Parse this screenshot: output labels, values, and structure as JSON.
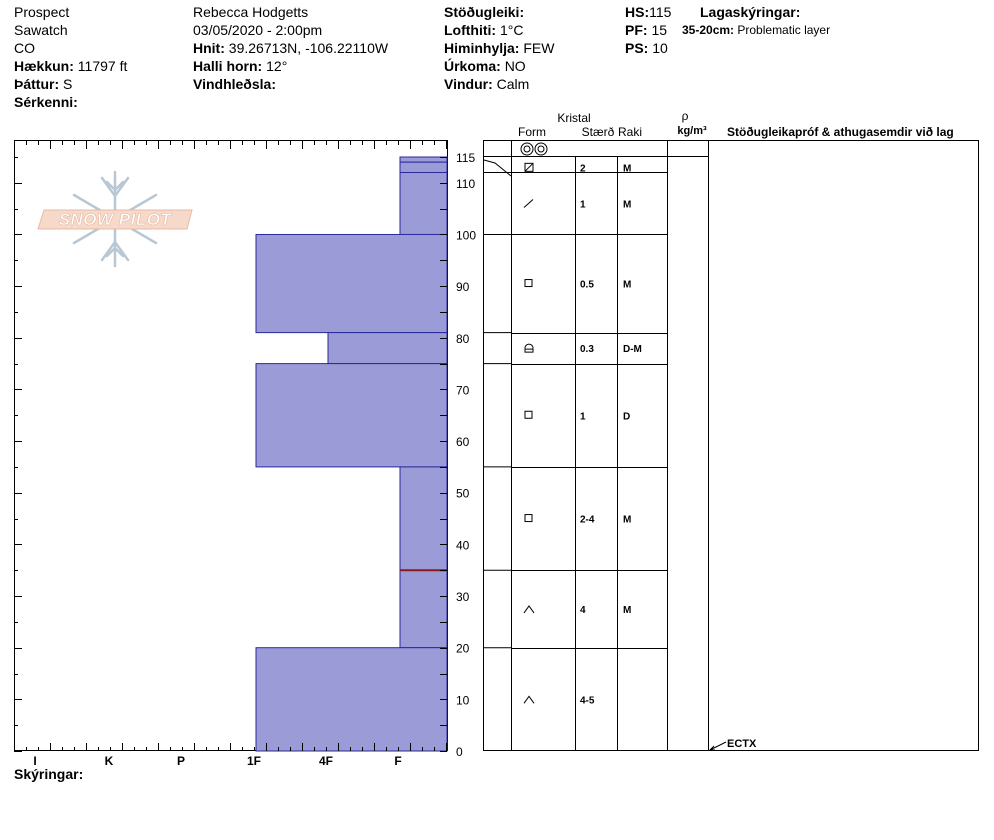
{
  "header": {
    "col1": {
      "location": "Prospect",
      "range": "Sawatch",
      "state": "CO",
      "elevation_label": "Hækkun:",
      "elevation_value": "11797 ft",
      "aspect_label": "Þáttur:",
      "aspect_value": "S",
      "features_label": "Sérkenni:"
    },
    "col2": {
      "observer": "Rebecca Hodgetts",
      "datetime": "03/05/2020 - 2:00pm",
      "coords_label": "Hnit:",
      "coords_value": "39.26713N, -106.22110W",
      "slope_label": "Halli horn:",
      "slope_value": "12°",
      "wind_loading_label": "Vindhleðsla:"
    },
    "col3": {
      "stability_label": "Stöðugleiki:",
      "air_temp_label": "Lofthiti:",
      "air_temp_value": "1°C",
      "sky_label": "Himinhylja:",
      "sky_value": "FEW",
      "precip_label": "Úrkoma:",
      "precip_value": "NO",
      "wind_label": "Vindur:",
      "wind_value": "Calm"
    },
    "col4": {
      "hs_label": "HS:",
      "hs_value": "115",
      "pf_label": "PF:",
      "pf_value": "15",
      "ps_label": "PS:",
      "ps_value": "10"
    },
    "col5": {
      "layer_notes_label": "Lagaskýringar:",
      "layer_note_range": "35-20cm:",
      "layer_note_text": "Problematic layer"
    }
  },
  "logo_text": "SNOW PILOT",
  "table_headers": {
    "crystal": "Kristal",
    "form": "Form",
    "size": "Stærð",
    "moisture": "Raki",
    "rho": "ρ",
    "density_unit": "kg/m³",
    "tests": "Stöðugleikapróf & athugasemdir við lag"
  },
  "footer": {
    "legend_label": "Skýringar:"
  },
  "test_result": "ECTX",
  "colors": {
    "layer_fill": "#9b9bd8",
    "layer_stroke": "#2a2a9a",
    "problem_line": "#8b1a1a",
    "logo_text": "#f0c8b4",
    "logo_flake": "#b9c7d3"
  },
  "chart_data": {
    "type": "bar",
    "orientation": "horizontal",
    "y_axis_label": "",
    "y_range": [
      0,
      115
    ],
    "y_ticks": [
      0,
      10,
      20,
      30,
      40,
      50,
      60,
      70,
      80,
      90,
      100,
      110,
      115
    ],
    "hardness_scale": [
      "I",
      "K",
      "P",
      "1F",
      "4F",
      "F"
    ],
    "problem_layer_depth": 35,
    "layers": [
      {
        "top": 115,
        "bottom": 114,
        "hardness": "F",
        "form_icon": "precip-particle",
        "size": "",
        "moisture": ""
      },
      {
        "top": 114,
        "bottom": 112,
        "hardness": "F",
        "form_icon": "surface-hoar",
        "size": "2",
        "moisture": "M"
      },
      {
        "top": 112,
        "bottom": 100,
        "hardness": "F",
        "form_icon": "decomposing",
        "size": "1",
        "moisture": "M"
      },
      {
        "top": 100,
        "bottom": 81,
        "hardness": "1F",
        "form_icon": "faceted",
        "size": "0.5",
        "moisture": "M"
      },
      {
        "top": 81,
        "bottom": 75,
        "hardness": "4F",
        "form_icon": "rounding-faceted",
        "size": "0.3",
        "moisture": "D-M"
      },
      {
        "top": 75,
        "bottom": 55,
        "hardness": "1F",
        "form_icon": "faceted",
        "size": "1",
        "moisture": "D"
      },
      {
        "top": 55,
        "bottom": 35,
        "hardness": "F",
        "form_icon": "faceted",
        "size": "2-4",
        "moisture": "M"
      },
      {
        "top": 35,
        "bottom": 20,
        "hardness": "F",
        "form_icon": "depth-hoar",
        "size": "4",
        "moisture": "M"
      },
      {
        "top": 20,
        "bottom": 0,
        "hardness": "1F",
        "form_icon": "depth-hoar",
        "size": "4-5",
        "moisture": ""
      }
    ],
    "test_depth": 1
  }
}
